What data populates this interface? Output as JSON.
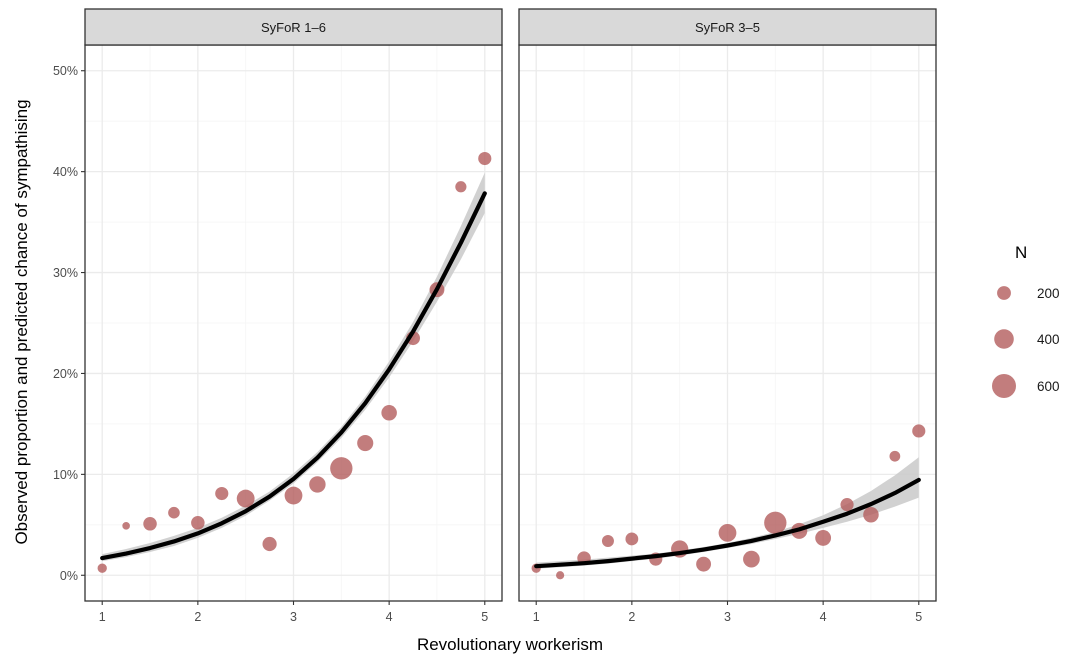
{
  "colors": {
    "point": "#b35c5c",
    "point_opacity": 0.8,
    "curve": "#000000",
    "ribbon": "#cccccc",
    "strip_bg": "#d9d9d9",
    "grid_major": "#ebebeb",
    "grid_minor": "#f5f5f5",
    "panel_border": "#333333"
  },
  "chart_data": {
    "type": "scatter",
    "xlabel": "Revolutionary workerism",
    "ylabel": "Observed proportion and predicted chance of sympathising",
    "xlim": [
      0.82,
      5.18
    ],
    "ylim": [
      -0.0255,
      0.5255
    ],
    "x_ticks": [
      1,
      2,
      3,
      4,
      5
    ],
    "x_tick_labels": [
      "1",
      "2",
      "3",
      "4",
      "5"
    ],
    "y_ticks": [
      0,
      0.1,
      0.2,
      0.3,
      0.4,
      0.5
    ],
    "y_tick_labels": [
      "0%",
      "10%",
      "20%",
      "30%",
      "40%",
      "50%"
    ],
    "grid": true,
    "legend": {
      "title": "N",
      "placement": "right",
      "entries": [
        {
          "label": "200",
          "n": 200
        },
        {
          "label": "400",
          "n": 400
        },
        {
          "label": "600",
          "n": 600
        }
      ]
    },
    "size_scale": {
      "n_ref": 600
    },
    "panels": [
      {
        "strip": "SyFoR 1–6",
        "points": [
          {
            "x": 1.0,
            "y": 0.007,
            "n": 90
          },
          {
            "x": 1.25,
            "y": 0.049,
            "n": 60
          },
          {
            "x": 1.5,
            "y": 0.051,
            "n": 190
          },
          {
            "x": 1.75,
            "y": 0.062,
            "n": 140
          },
          {
            "x": 2.0,
            "y": 0.052,
            "n": 190
          },
          {
            "x": 2.25,
            "y": 0.081,
            "n": 180
          },
          {
            "x": 2.5,
            "y": 0.076,
            "n": 330
          },
          {
            "x": 2.75,
            "y": 0.031,
            "n": 210
          },
          {
            "x": 3.0,
            "y": 0.079,
            "n": 330
          },
          {
            "x": 3.25,
            "y": 0.09,
            "n": 280
          },
          {
            "x": 3.5,
            "y": 0.106,
            "n": 520
          },
          {
            "x": 3.75,
            "y": 0.131,
            "n": 270
          },
          {
            "x": 4.0,
            "y": 0.161,
            "n": 250
          },
          {
            "x": 4.25,
            "y": 0.235,
            "n": 200
          },
          {
            "x": 4.5,
            "y": 0.283,
            "n": 230
          },
          {
            "x": 4.75,
            "y": 0.385,
            "n": 130
          },
          {
            "x": 5.0,
            "y": 0.413,
            "n": 180
          }
        ],
        "curve": {
          "x": [
            1.0,
            1.25,
            1.5,
            1.75,
            2.0,
            2.25,
            2.5,
            2.75,
            3.0,
            3.25,
            3.5,
            3.75,
            4.0,
            4.25,
            4.5,
            4.75,
            5.0
          ],
          "y": [
            0.017,
            0.0215,
            0.027,
            0.0335,
            0.0415,
            0.0515,
            0.0635,
            0.078,
            0.0955,
            0.1165,
            0.1415,
            0.1705,
            0.204,
            0.2415,
            0.2835,
            0.3295,
            0.3785
          ],
          "lower": [
            0.014,
            0.018,
            0.023,
            0.029,
            0.037,
            0.047,
            0.059,
            0.074,
            0.091,
            0.112,
            0.136,
            0.164,
            0.196,
            0.232,
            0.271,
            0.313,
            0.359
          ],
          "upper": [
            0.021,
            0.026,
            0.032,
            0.039,
            0.047,
            0.057,
            0.069,
            0.083,
            0.101,
            0.122,
            0.147,
            0.177,
            0.212,
            0.251,
            0.296,
            0.346,
            0.399
          ]
        }
      },
      {
        "strip": "SyFoR 3–5",
        "points": [
          {
            "x": 1.0,
            "y": 0.007,
            "n": 90
          },
          {
            "x": 1.25,
            "y": 0.0,
            "n": 70
          },
          {
            "x": 1.5,
            "y": 0.017,
            "n": 190
          },
          {
            "x": 1.75,
            "y": 0.034,
            "n": 150
          },
          {
            "x": 2.0,
            "y": 0.036,
            "n": 170
          },
          {
            "x": 2.25,
            "y": 0.016,
            "n": 180
          },
          {
            "x": 2.5,
            "y": 0.026,
            "n": 310
          },
          {
            "x": 2.75,
            "y": 0.011,
            "n": 230
          },
          {
            "x": 3.0,
            "y": 0.042,
            "n": 330
          },
          {
            "x": 3.25,
            "y": 0.016,
            "n": 290
          },
          {
            "x": 3.5,
            "y": 0.052,
            "n": 520
          },
          {
            "x": 3.75,
            "y": 0.044,
            "n": 270
          },
          {
            "x": 4.0,
            "y": 0.037,
            "n": 260
          },
          {
            "x": 4.25,
            "y": 0.07,
            "n": 180
          },
          {
            "x": 4.5,
            "y": 0.06,
            "n": 250
          },
          {
            "x": 4.75,
            "y": 0.118,
            "n": 120
          },
          {
            "x": 5.0,
            "y": 0.143,
            "n": 180
          }
        ],
        "curve": {
          "x": [
            1.0,
            1.25,
            1.5,
            1.75,
            2.0,
            2.25,
            2.5,
            2.75,
            3.0,
            3.25,
            3.5,
            3.75,
            4.0,
            4.25,
            4.5,
            4.75,
            5.0
          ],
          "y": [
            0.009,
            0.0105,
            0.012,
            0.014,
            0.0165,
            0.019,
            0.022,
            0.0255,
            0.0295,
            0.034,
            0.0395,
            0.0455,
            0.053,
            0.061,
            0.0705,
            0.0815,
            0.0945
          ],
          "lower": [
            0.0065,
            0.008,
            0.0095,
            0.0115,
            0.014,
            0.0165,
            0.0195,
            0.023,
            0.027,
            0.031,
            0.036,
            0.041,
            0.047,
            0.053,
            0.06,
            0.068,
            0.077
          ],
          "upper": [
            0.0125,
            0.014,
            0.0155,
            0.0175,
            0.0195,
            0.0215,
            0.0245,
            0.028,
            0.032,
            0.037,
            0.043,
            0.0505,
            0.0595,
            0.0705,
            0.0835,
            0.099,
            0.117
          ]
        }
      }
    ]
  }
}
